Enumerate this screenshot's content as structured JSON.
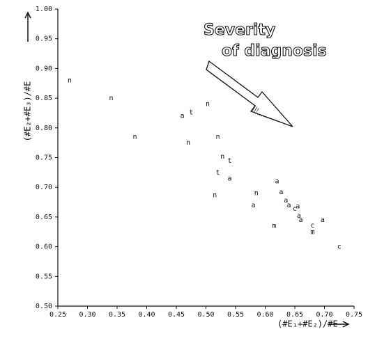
{
  "chart_data": {
    "type": "scatter",
    "xlabel": "(#E₁+#E₂)/#E",
    "ylabel": "(#E₂+#E₃)/#E",
    "annotation": [
      "Severity",
      "of diagnosis"
    ],
    "xlim": [
      0.25,
      0.75
    ],
    "ylim": [
      0.5,
      1.0
    ],
    "xticks": [
      0.25,
      {
        "value": 0.3,
        "label": "0.30"
      },
      0.35,
      {
        "value": 0.4,
        "label": "0.40"
      },
      0.45,
      {
        "value": 0.5,
        "label": "0.50"
      },
      0.55,
      {
        "value": 0.6,
        "label": "0.60"
      },
      0.65,
      {
        "value": 0.7,
        "label": "0.70"
      },
      0.75
    ],
    "yticks": [
      {
        "value": 0.5,
        "label": "0.50"
      },
      0.55,
      {
        "value": 0.6,
        "label": "0.60"
      },
      0.65,
      {
        "value": 0.7,
        "label": "0.70"
      },
      0.75,
      {
        "value": 0.8,
        "label": "0.80"
      },
      0.85,
      {
        "value": 0.9,
        "label": "0.90"
      },
      0.95,
      {
        "value": 1.0,
        "label": "1.00"
      }
    ],
    "color": "#111111",
    "grid": false,
    "x": [
      0.27,
      0.34,
      0.38,
      0.46,
      0.475,
      0.47,
      0.503,
      0.52,
      0.528,
      0.54,
      0.52,
      0.54,
      0.515,
      0.585,
      0.58,
      0.62,
      0.627,
      0.635,
      0.64,
      0.65,
      0.655,
      0.657,
      0.66,
      0.615,
      0.68,
      0.68,
      0.697,
      0.725
    ],
    "y": [
      0.88,
      0.85,
      0.785,
      0.82,
      0.826,
      0.775,
      0.84,
      0.785,
      0.752,
      0.745,
      0.725,
      0.715,
      0.687,
      0.69,
      0.67,
      0.71,
      0.692,
      0.678,
      0.67,
      0.664,
      0.668,
      0.652,
      0.645,
      0.635,
      0.636,
      0.625,
      0.645,
      0.6
    ],
    "markers": [
      "n",
      "n",
      "n",
      "a",
      "t",
      "n",
      "n",
      "n",
      "n",
      "t",
      "t",
      "a",
      "n",
      "n",
      "a",
      "a",
      "a",
      "a",
      "a",
      "c",
      "a",
      "a",
      "a",
      "m",
      "c",
      "m",
      "a",
      "c"
    ]
  }
}
